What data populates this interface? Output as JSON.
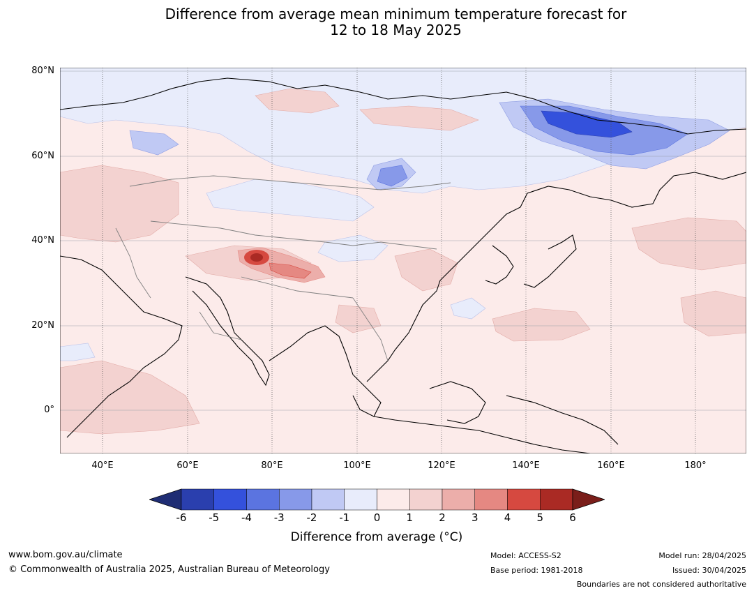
{
  "title_line1": "Difference from average mean minimum temperature forecast for",
  "title_line2": "12 to 18 May 2025",
  "lat_labels": [
    "80°N",
    "60°N",
    "40°N",
    "20°N",
    "0°"
  ],
  "lon_labels": [
    "40°E",
    "60°E",
    "80°E",
    "100°E",
    "120°E",
    "140°E",
    "160°E",
    "180°"
  ],
  "colorbar": {
    "ticks": [
      "-6",
      "-5",
      "-4",
      "-3",
      "-2",
      "-1",
      "0",
      "1",
      "2",
      "3",
      "4",
      "5",
      "6"
    ],
    "colors": [
      "#1f2d74",
      "#2a3fae",
      "#3451dc",
      "#5b74e0",
      "#8799e9",
      "#c0c9f4",
      "#e8ecfb",
      "#fcebea",
      "#f3d2d0",
      "#ecaeaa",
      "#e58882",
      "#d64940",
      "#aa2a24",
      "#7a1e1a"
    ],
    "label": "Difference from average (°C)"
  },
  "footer": {
    "website": "www.bom.gov.au/climate",
    "copyright": "© Commonwealth of Australia 2025, Australian Bureau of Meteorology",
    "model": "Model: ACCESS-S2",
    "base_period": "Base period: 1981-2018",
    "model_run": "Model run: 28/04/2025",
    "issued": "Issued: 30/04/2025",
    "boundaries_note": "Boundaries are not considered authoritative"
  }
}
